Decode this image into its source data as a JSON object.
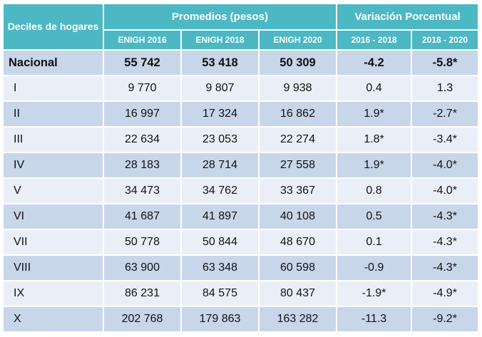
{
  "headers": {
    "corner": "Deciles de hogares",
    "promedios": "Promedios (pesos)",
    "variacion": "Variación Porcentual",
    "sub": [
      "ENIGH 2016",
      "ENIGH 2018",
      "ENIGH 2020",
      "2016 - 2018",
      "2018 - 2020"
    ]
  },
  "rows": [
    {
      "label": "Nacional",
      "v2016": "55 742",
      "v2018": "53 418",
      "v2020": "50 309",
      "var1618": "-4.2",
      "var1820": "-5.8*"
    },
    {
      "label": "I",
      "v2016": "9 770",
      "v2018": "9 807",
      "v2020": "9 938",
      "var1618": "0.4",
      "var1820": "1.3"
    },
    {
      "label": "II",
      "v2016": "16 997",
      "v2018": "17 324",
      "v2020": "16 862",
      "var1618": "1.9*",
      "var1820": "-2.7*"
    },
    {
      "label": "III",
      "v2016": "22 634",
      "v2018": "23 053",
      "v2020": "22 274",
      "var1618": "1.8*",
      "var1820": "-3.4*"
    },
    {
      "label": "IV",
      "v2016": "28 183",
      "v2018": "28 714",
      "v2020": "27 558",
      "var1618": "1.9*",
      "var1820": "-4.0*"
    },
    {
      "label": "V",
      "v2016": "34 473",
      "v2018": "34 762",
      "v2020": "33 367",
      "var1618": "0.8",
      "var1820": "-4.0*"
    },
    {
      "label": "VI",
      "v2016": "41 687",
      "v2018": "41 897",
      "v2020": "40 108",
      "var1618": "0.5",
      "var1820": "-4.3*"
    },
    {
      "label": "VII",
      "v2016": "50 778",
      "v2018": "50 844",
      "v2020": "48 670",
      "var1618": "0.1",
      "var1820": "-4.3*"
    },
    {
      "label": "VIII",
      "v2016": "63 900",
      "v2018": "63 348",
      "v2020": "60 598",
      "var1618": "-0.9",
      "var1820": "-4.3*"
    },
    {
      "label": "IX",
      "v2016": "86 231",
      "v2018": "84 575",
      "v2020": "80 437",
      "var1618": "-1.9*",
      "var1820": "-4.9*"
    },
    {
      "label": "X",
      "v2016": "202 768",
      "v2018": "179 863",
      "v2020": "163 282",
      "var1618": "-11.3",
      "var1820": "-9.2*"
    }
  ],
  "colors": {
    "header": "#4cb8c4",
    "row_dark": "#c8d6ea",
    "row_light": "#eaeff7"
  }
}
